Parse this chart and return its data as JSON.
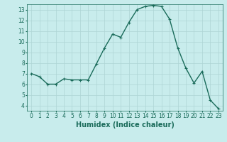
{
  "x": [
    0,
    1,
    2,
    3,
    4,
    5,
    6,
    7,
    8,
    9,
    10,
    11,
    12,
    13,
    14,
    15,
    16,
    17,
    18,
    19,
    20,
    21,
    22,
    23
  ],
  "y": [
    7.0,
    6.7,
    6.0,
    6.0,
    6.5,
    6.4,
    6.4,
    6.4,
    7.9,
    9.4,
    10.7,
    10.4,
    11.8,
    13.0,
    13.3,
    13.4,
    13.3,
    12.1,
    9.4,
    7.5,
    6.1,
    7.2,
    4.5,
    3.7
  ],
  "line_color": "#1a6b5a",
  "marker": "+",
  "marker_size": 3.5,
  "bg_color": "#c8ecec",
  "grid_color": "#aed4d4",
  "xlabel": "Humidex (Indice chaleur)",
  "xlim": [
    -0.5,
    23.5
  ],
  "ylim": [
    3.5,
    13.5
  ],
  "yticks": [
    4,
    5,
    6,
    7,
    8,
    9,
    10,
    11,
    12,
    13
  ],
  "xticks": [
    0,
    1,
    2,
    3,
    4,
    5,
    6,
    7,
    8,
    9,
    10,
    11,
    12,
    13,
    14,
    15,
    16,
    17,
    18,
    19,
    20,
    21,
    22,
    23
  ],
  "tick_label_color": "#1a6b5a",
  "tick_fontsize": 5.5,
  "xlabel_fontsize": 7.0,
  "xlabel_color": "#1a6b5a",
  "line_width": 1.0
}
